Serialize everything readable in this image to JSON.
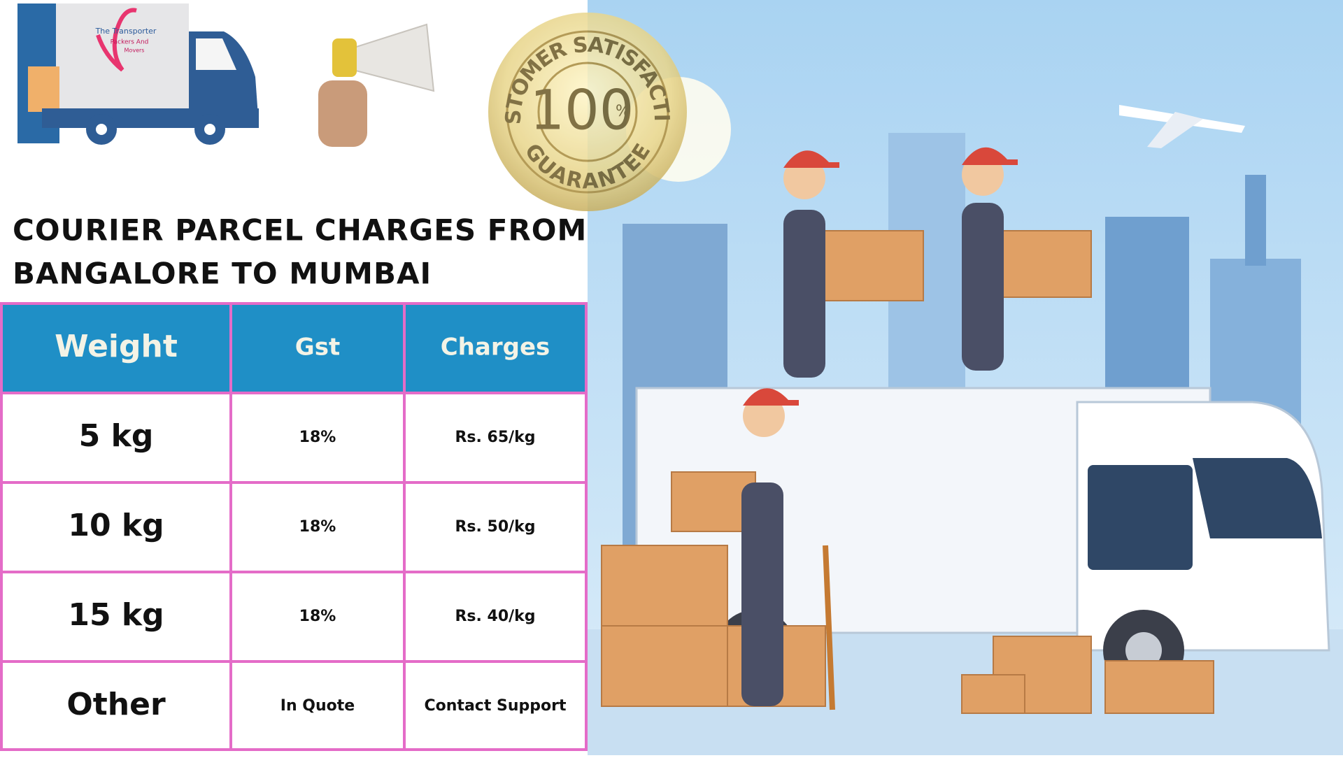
{
  "logo": {
    "line1": "The Transporter",
    "line2": "Packers And",
    "line3": "Movers"
  },
  "badge": {
    "top": "CUSTOMER SATISFACTION",
    "number": "100",
    "unit": "%",
    "bottom": "GUARANTEE"
  },
  "header": {
    "title_lines": [
      "COURIER PARCEL CHARGES FROM",
      "BANGALORE TO MUMBAI"
    ]
  },
  "table": {
    "columns": [
      "Weight",
      "Gst",
      "Charges"
    ],
    "rows": [
      [
        "5 kg",
        "18%",
        "Rs. 65/kg"
      ],
      [
        "10 kg",
        "18%",
        "Rs. 50/kg"
      ],
      [
        "15 kg",
        "18%",
        "Rs. 40/kg"
      ],
      [
        "Other",
        "In Quote",
        "Contact Support"
      ]
    ]
  }
}
